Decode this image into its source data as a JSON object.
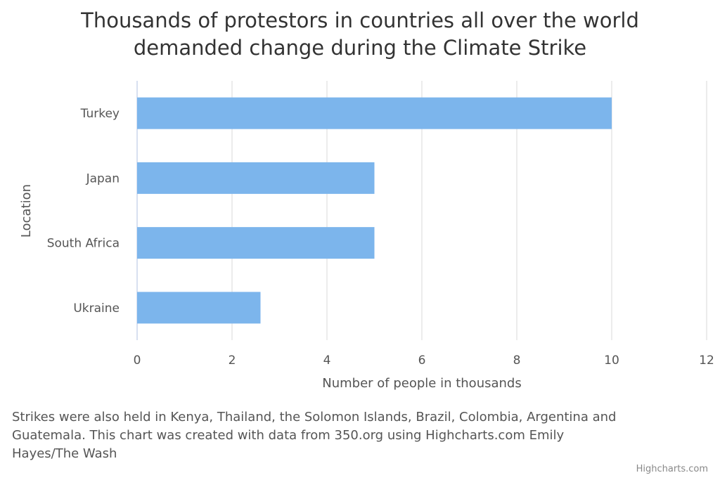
{
  "chart_data": {
    "type": "bar",
    "orientation": "horizontal",
    "title_lines": [
      "Thousands of protestors in countries all over the world",
      "demanded change during the Climate Strike"
    ],
    "categories": [
      "Turkey",
      "Japan",
      "South Africa",
      "Ukraine"
    ],
    "values": [
      10,
      5,
      5,
      2.6
    ],
    "xlabel": "Number of people in thousands",
    "ylabel": "Location",
    "xlim": [
      0,
      12
    ],
    "xticks": [
      "0",
      "2",
      "4",
      "6",
      "8",
      "10",
      "12"
    ],
    "grid": true,
    "legend": "none",
    "bar_color": "#7cb5ec"
  },
  "caption_lines": [
    "Strikes were also held in Kenya, Thailand, the Solomon Islands, Brazil, Colombia, Argentina and",
    "Guatemala. This chart was created with data from 350.org using Highcharts.com Emily",
    "Hayes/The Wash"
  ],
  "credits": "Highcharts.com"
}
